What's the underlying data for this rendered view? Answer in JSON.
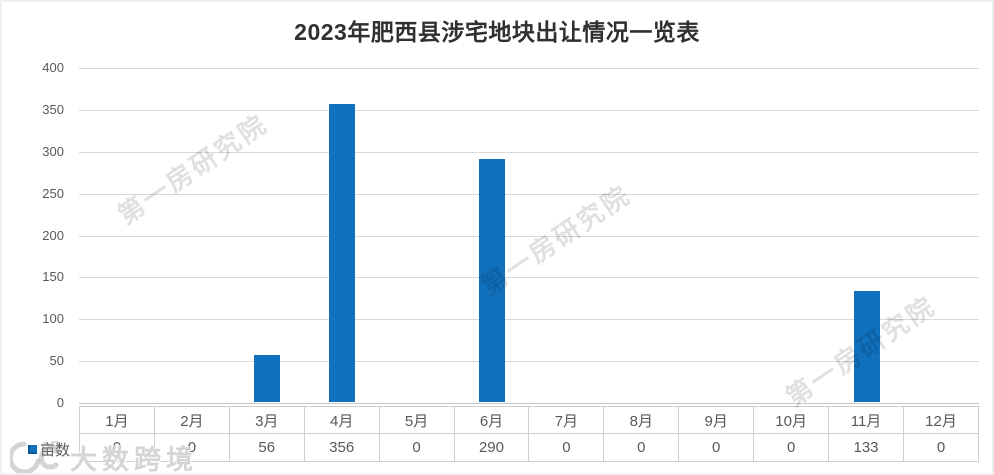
{
  "title": "2023年肥西县涉宅地块出让情况一览表",
  "legend": {
    "series_label": "亩数"
  },
  "watermark": {
    "diagonal_text": "第一房研究院",
    "corner_text": "大数跨境"
  },
  "colors": {
    "bar": "#1171bd",
    "gridline": "#d9d9d9",
    "axis_text": "#595959",
    "title_text": "#303030",
    "table_border": "#cfcfcf"
  },
  "chart_data": {
    "type": "bar",
    "title": "2023年肥西县涉宅地块出让情况一览表",
    "categories": [
      "1月",
      "2月",
      "3月",
      "4月",
      "5月",
      "6月",
      "7月",
      "8月",
      "9月",
      "10月",
      "11月",
      "12月"
    ],
    "series": [
      {
        "name": "亩数",
        "values": [
          0,
          0,
          56,
          356,
          0,
          290,
          0,
          0,
          0,
          0,
          133,
          0
        ]
      }
    ],
    "xlabel": "",
    "ylabel": "",
    "ylim": [
      0,
      400
    ],
    "ytick_interval": 50,
    "grid": true,
    "legend_position": "data-table-left",
    "data_table": true
  }
}
